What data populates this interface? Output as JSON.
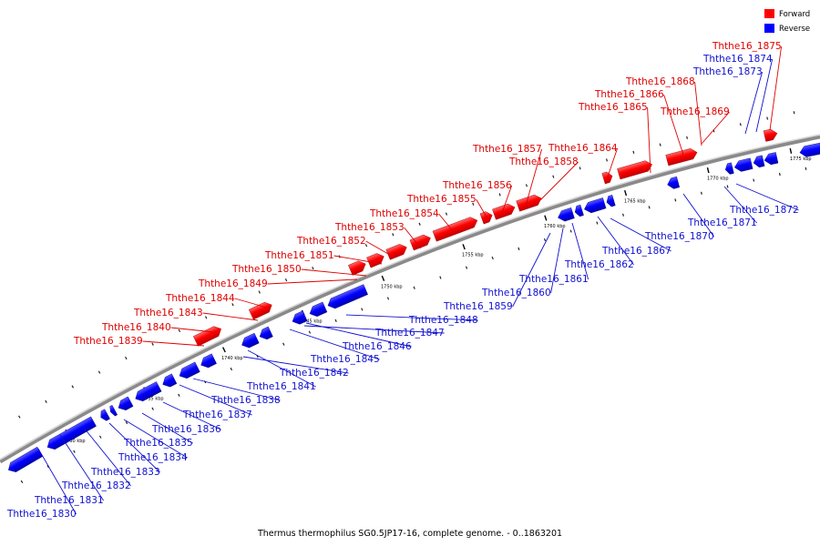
{
  "caption": "Thermus thermophilus SG0.5JP17-16, complete genome. - 0..1863201",
  "legend": [
    {
      "label": "Forward",
      "color": "#ff0000"
    },
    {
      "label": "Reverse",
      "color": "#0000ff"
    }
  ],
  "colors": {
    "forward": "#ff0000",
    "reverse": "#0000ff",
    "forward_label": "#e00000",
    "reverse_label": "#1010d0",
    "backbone": "#999999"
  },
  "ticks": [
    "1730 kbp",
    "1735 kbp",
    "1740 kbp",
    "1745 kbp",
    "1750 kbp",
    "1755 kbp",
    "1760 kbp",
    "1765 kbp",
    "1770 kbp",
    "1775 kbp"
  ],
  "forward_genes": [
    "Ththe16_1839",
    "Ththe16_1840",
    "Ththe16_1843",
    "Ththe16_1844",
    "Ththe16_1849",
    "Ththe16_1850",
    "Ththe16_1851",
    "Ththe16_1852",
    "Ththe16_1853",
    "Ththe16_1854",
    "Ththe16_1855",
    "Ththe16_1856",
    "Ththe16_1857",
    "Ththe16_1858",
    "Ththe16_1864",
    "Ththe16_1865",
    "Ththe16_1866",
    "Ththe16_1868",
    "Ththe16_1869",
    "Ththe16_1875"
  ],
  "reverse_genes": [
    "Ththe16_1830",
    "Ththe16_1831",
    "Ththe16_1832",
    "Ththe16_1833",
    "Ththe16_1834",
    "Ththe16_1835",
    "Ththe16_1836",
    "Ththe16_1837",
    "Ththe16_1838",
    "Ththe16_1841",
    "Ththe16_1842",
    "Ththe16_1845",
    "Ththe16_1846",
    "Ththe16_1847",
    "Ththe16_1848",
    "Ththe16_1859",
    "Ththe16_1860",
    "Ththe16_1861",
    "Ththe16_1862",
    "Ththe16_1867",
    "Ththe16_1870",
    "Ththe16_1871",
    "Ththe16_1872",
    "Ththe16_1873",
    "Ththe16_1874"
  ]
}
